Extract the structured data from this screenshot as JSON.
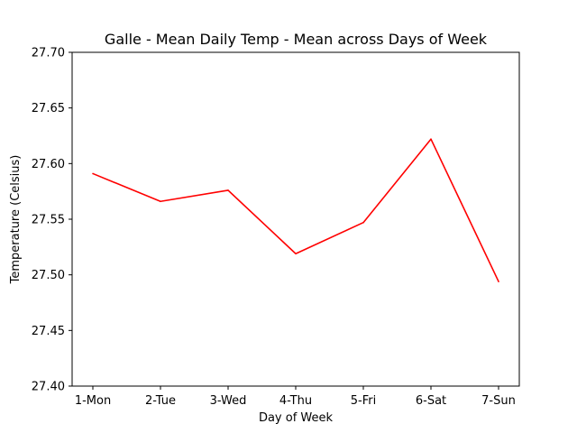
{
  "chart_data": {
    "type": "line",
    "title": "Galle - Mean Daily Temp - Mean across Days of Week",
    "xlabel": "Day of Week",
    "ylabel": "Temperature (Celsius)",
    "categories": [
      "1-Mon",
      "2-Tue",
      "3-Wed",
      "4-Thu",
      "5-Fri",
      "6-Sat",
      "7-Sun"
    ],
    "series": [
      {
        "values": [
          27.591,
          27.566,
          27.576,
          27.519,
          27.547,
          27.622,
          27.494
        ],
        "color": "#ff0000"
      }
    ],
    "ylim": [
      27.4,
      27.7
    ],
    "yticks": [
      "27.40",
      "27.45",
      "27.50",
      "27.55",
      "27.60",
      "27.65",
      "27.70"
    ],
    "grid": false,
    "legend": "none"
  }
}
